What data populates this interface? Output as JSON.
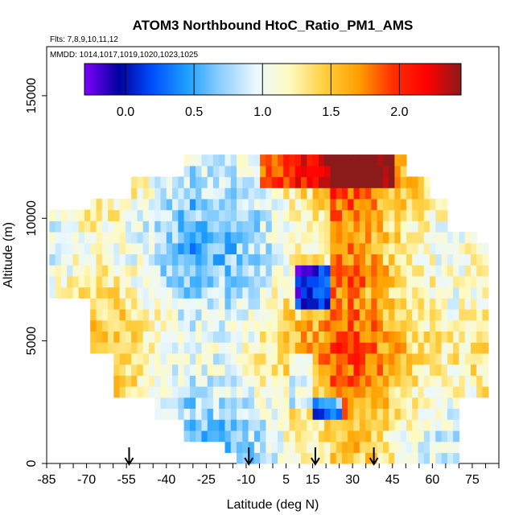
{
  "chart_data": {
    "type": "heatmap",
    "title": "ATOM3 Northbound HtoC_Ratio_PM1_AMS",
    "subtitle_flights": "Flts: 7,8,9,10,11,12",
    "subtitle_dates": "MMDD: 1014,1017,1019,1020,1023,1025",
    "xlabel": "Latitude (deg N)",
    "ylabel": "Altitude (m)",
    "xlim": [
      -85,
      85
    ],
    "ylim": [
      0,
      17000
    ],
    "x_tick_labels": [
      "-85",
      "-70",
      "-55",
      "-40",
      "-25",
      "-10",
      "5",
      "15",
      "30",
      "45",
      "60",
      "75"
    ],
    "y_tick_labels": [
      "0",
      "5000",
      "10000",
      "15000"
    ],
    "colorbar": {
      "range": [
        -0.3,
        2.45
      ],
      "tick_labels": [
        "0.0",
        "0.5",
        "1.0",
        "1.5",
        "2.0"
      ],
      "colors": [
        "#7f00ff",
        "#0000a0",
        "#0050ff",
        "#1ea0ff",
        "#8fd0ff",
        "#eaf8ff",
        "#fffac0",
        "#ffd040",
        "#ffa000",
        "#ff3000",
        "#ff0000",
        "#8b1a1a"
      ]
    },
    "markers": {
      "description_hidden": "",
      "latitudes": [
        -54,
        -9,
        16,
        38
      ]
    },
    "grid": false,
    "legend": "colorbar-top-inset"
  }
}
